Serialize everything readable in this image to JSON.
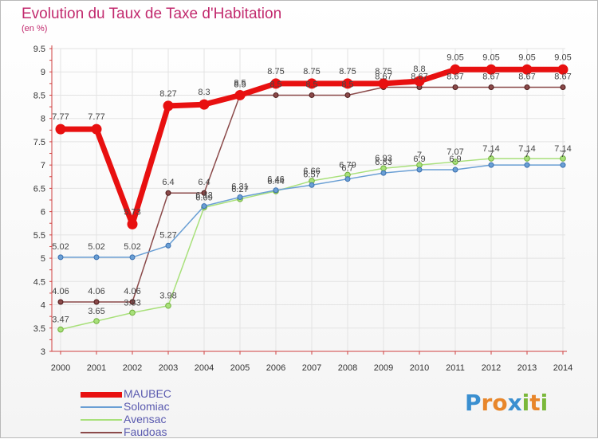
{
  "page": {
    "title": "Evolution du Taux de Taxe d'Habitation",
    "subtitle": "(en %)"
  },
  "chart_data": {
    "type": "line",
    "title": "Evolution du Taux de Taxe d'Habitation",
    "ylabel": "(en %)",
    "x": [
      "2000",
      "2001",
      "2002",
      "2003",
      "2004",
      "2005",
      "2006",
      "2007",
      "2008",
      "2009",
      "2010",
      "2011",
      "2012",
      "2013",
      "2014"
    ],
    "ylim": [
      3,
      9.5
    ],
    "yticks": [
      "3",
      "3.5",
      "4",
      "4.5",
      "5",
      "5.5",
      "6",
      "6.5",
      "7",
      "7.5",
      "8",
      "8.5",
      "9",
      "9.5"
    ],
    "grid": true,
    "legend": "bottom-left",
    "series": [
      {
        "name": "MAUBEC",
        "color": "#e81010",
        "values": [
          7.77,
          7.77,
          5.73,
          8.27,
          8.3,
          8.5,
          8.75,
          8.75,
          8.75,
          8.75,
          8.8,
          9.05,
          9.05,
          9.05,
          9.05
        ],
        "labels": [
          "7.77",
          "7.77",
          "5.73",
          "8.27",
          "8.3",
          "8.5",
          "8.75",
          "8.75",
          "8.75",
          "8.75",
          "8.8",
          "9.05",
          "9.05",
          "9.05",
          "9.05"
        ]
      },
      {
        "name": "Solomiac",
        "color": "#6a9fd4",
        "values": [
          5.02,
          5.02,
          5.02,
          5.27,
          6.12,
          6.31,
          6.46,
          6.57,
          6.7,
          6.83,
          6.9,
          6.9,
          7.0,
          7.0,
          7.0
        ],
        "labels": [
          "5.02",
          "5.02",
          "5.02",
          "5.27",
          "6.12",
          "6.31",
          "6.46",
          "6.57",
          "6.7",
          "6.83",
          "6.9",
          "6.9",
          "7",
          "7",
          "7"
        ]
      },
      {
        "name": "Avensac",
        "color": "#a8e07a",
        "values": [
          3.47,
          3.65,
          3.83,
          3.98,
          6.09,
          6.27,
          6.44,
          6.66,
          6.79,
          6.93,
          7.0,
          7.07,
          7.14,
          7.14,
          7.14
        ],
        "labels": [
          "3.47",
          "3.65",
          "3.83",
          "3.98",
          "6.09",
          "6.27",
          "6.44",
          "6.66",
          "6.79",
          "6.93",
          "7",
          "7.07",
          "7.14",
          "7.14",
          "7.14"
        ]
      },
      {
        "name": "Faudoas",
        "color": "#8b4a4a",
        "values": [
          4.06,
          4.06,
          4.06,
          6.4,
          6.4,
          8.5,
          8.5,
          8.5,
          8.5,
          8.67,
          8.67,
          8.67,
          8.67,
          8.67,
          8.67
        ],
        "labels": [
          "4.06",
          "4.06",
          "4.06",
          "6.4",
          "6.4",
          "8.5",
          "8.5",
          "8.5",
          "8.5",
          "8.67",
          "8.67",
          "8.67",
          "8.67",
          "8.67",
          "8.67"
        ]
      }
    ]
  },
  "logo": {
    "letters": [
      "P",
      "r",
      "o",
      "x",
      "i",
      "t",
      "i"
    ],
    "colors": [
      "#3a8fd0",
      "#e8862a",
      "#e8862a",
      "#3a8fd0",
      "#7ab83a",
      "#e8862a",
      "#7ab83a"
    ]
  }
}
